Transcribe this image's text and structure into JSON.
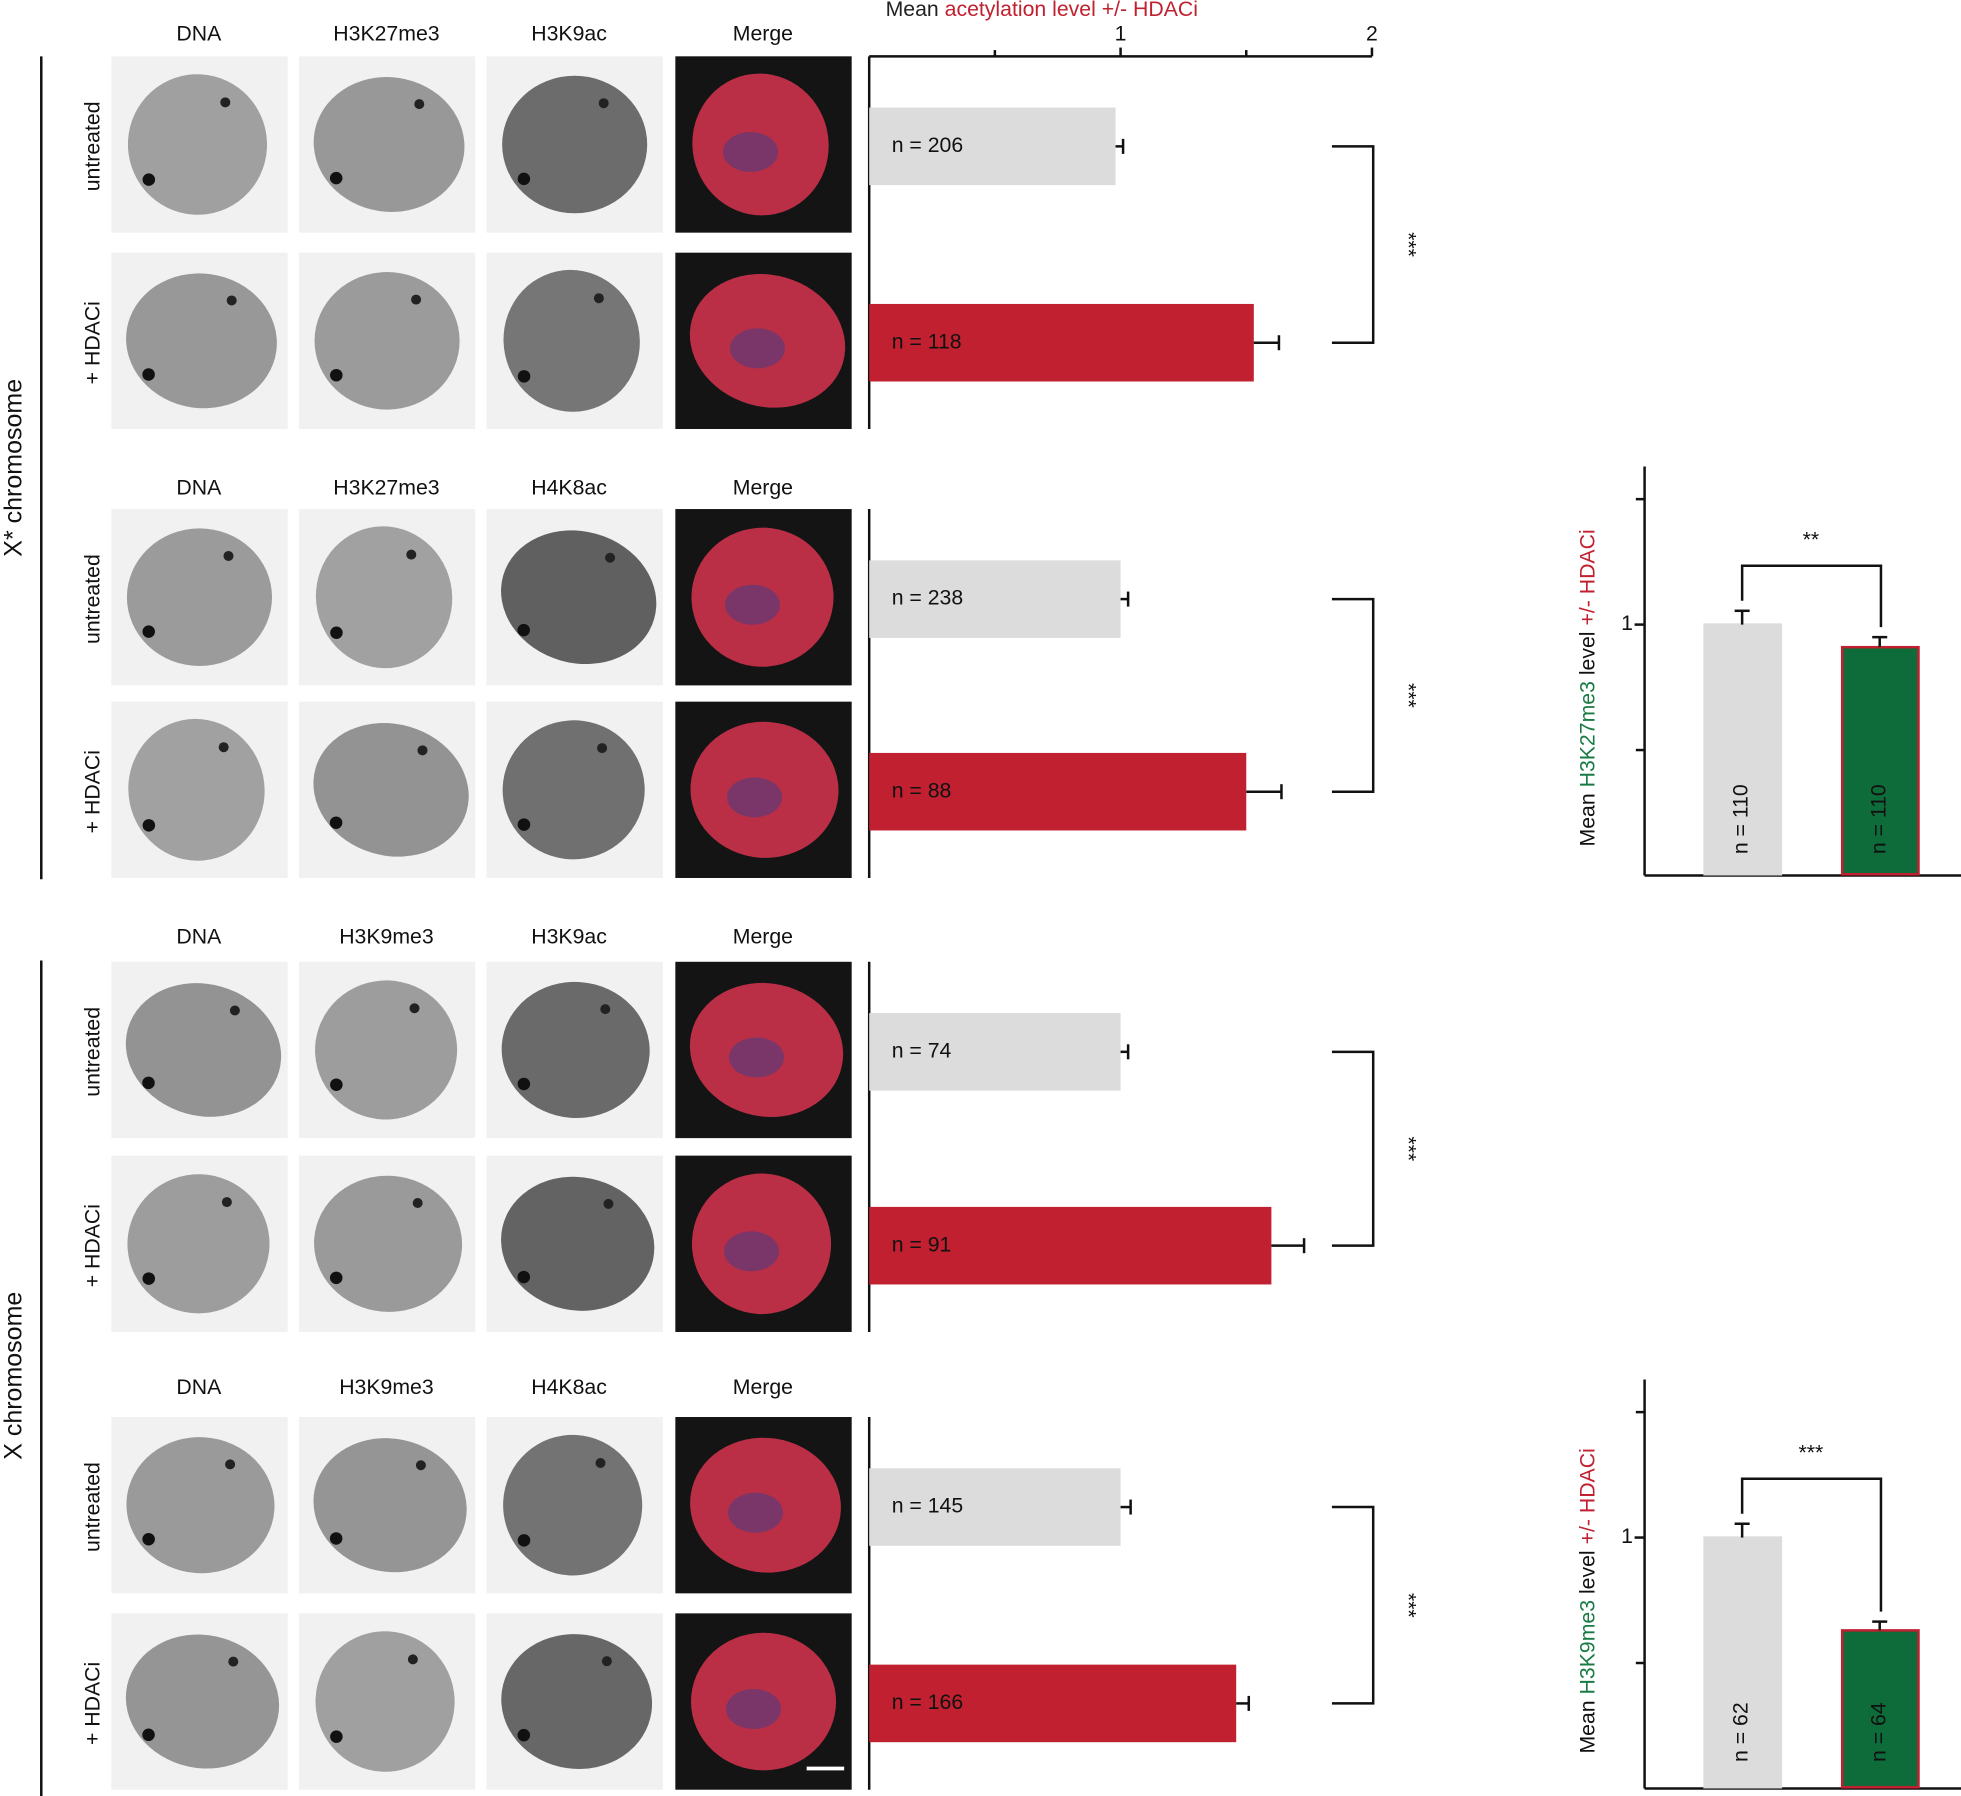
{
  "figure": {
    "sections": [
      {
        "label": "X* chromosome"
      },
      {
        "label": "X chromosome"
      }
    ],
    "panels": [
      {
        "headers": [
          "DNA",
          "H3K27me3",
          "H3K9ac",
          "Merge"
        ]
      },
      {
        "headers": [
          "DNA",
          "H3K27me3",
          "H4K8ac",
          "Merge"
        ]
      },
      {
        "headers": [
          "DNA",
          "H3K9me3",
          "H3K9ac",
          "Merge"
        ]
      },
      {
        "headers": [
          "DNA",
          "H3K9me3",
          "H4K8ac",
          "Merge"
        ]
      }
    ],
    "header_colors": [
      "#2ab0c8",
      "#1a7a45",
      "#c0202f",
      "#111111"
    ]
  },
  "chart_data": [
    {
      "type": "bar",
      "orientation": "horizontal",
      "xlabel_parts": [
        {
          "text": "Mean",
          "color": "#222222"
        },
        {
          "text": "acetylation level +/- HDACi",
          "color": "#c0202f"
        }
      ],
      "xlim": [
        0,
        2
      ],
      "xticks": [
        1,
        2
      ],
      "minor_xticks": [
        0.5,
        1.5
      ],
      "categories": [
        "untreated",
        "+ HDACi"
      ],
      "category_colors": [
        "#111111",
        "#c0202f"
      ],
      "values": [
        0.98,
        1.53
      ],
      "errors": [
        0.03,
        0.1
      ],
      "colors": [
        "#dcdcdc",
        "#c0202f"
      ],
      "n_labels": [
        "n = 206",
        "n = 118"
      ],
      "significance": "***"
    },
    {
      "type": "bar",
      "orientation": "horizontal",
      "xlim": [
        0,
        2
      ],
      "categories": [
        "untreated",
        "+ HDACi"
      ],
      "category_colors": [
        "#111111",
        "#c0202f"
      ],
      "values": [
        1.0,
        1.5
      ],
      "errors": [
        0.03,
        0.14
      ],
      "colors": [
        "#dcdcdc",
        "#c0202f"
      ],
      "n_labels": [
        "n = 238",
        "n = 88"
      ],
      "significance": "***"
    },
    {
      "type": "bar",
      "orientation": "horizontal",
      "xlim": [
        0,
        2
      ],
      "categories": [
        "untreated",
        "+ HDACi"
      ],
      "category_colors": [
        "#111111",
        "#c0202f"
      ],
      "values": [
        1.0,
        1.6
      ],
      "errors": [
        0.03,
        0.13
      ],
      "colors": [
        "#dcdcdc",
        "#c0202f"
      ],
      "n_labels": [
        "n = 74",
        "n = 91"
      ],
      "significance": "***"
    },
    {
      "type": "bar",
      "orientation": "horizontal",
      "xlim": [
        0,
        2
      ],
      "categories": [
        "untreated",
        "+ HDACi"
      ],
      "category_colors": [
        "#111111",
        "#c0202f"
      ],
      "values": [
        1.0,
        1.46
      ],
      "errors": [
        0.04,
        0.05
      ],
      "colors": [
        "#dcdcdc",
        "#c0202f"
      ],
      "n_labels": [
        "n = 145",
        "n = 166"
      ],
      "significance": "***"
    },
    {
      "type": "bar",
      "orientation": "vertical",
      "ylabel_parts": [
        {
          "text": "Mean",
          "color": "#111111"
        },
        {
          "text": "H3K27me3",
          "color": "#1a7a45"
        },
        {
          "text": "level",
          "color": "#111111"
        },
        {
          "text": "+/- HDACi",
          "color": "#c0202f"
        }
      ],
      "ylim": [
        0,
        1.63
      ],
      "yticks": [
        1
      ],
      "minor_yticks": [
        0.5,
        1.5
      ],
      "values": [
        1.0,
        0.91
      ],
      "errors": [
        0.055,
        0.04
      ],
      "colors": [
        "#dcdcdc",
        "#0e6b3a"
      ],
      "edge_colors": [
        "#dcdcdc",
        "#c0202f"
      ],
      "n_labels": [
        "n = 110",
        "n = 110"
      ],
      "significance": "**"
    },
    {
      "type": "bar",
      "orientation": "vertical",
      "ylabel_parts": [
        {
          "text": "Mean",
          "color": "#111111"
        },
        {
          "text": "H3K9me3",
          "color": "#1a7a45"
        },
        {
          "text": "level",
          "color": "#111111"
        },
        {
          "text": "+/- HDACi",
          "color": "#c0202f"
        }
      ],
      "ylim": [
        0,
        1.63
      ],
      "yticks": [
        1
      ],
      "minor_yticks": [
        0.5,
        1.5
      ],
      "values": [
        1.0,
        0.63
      ],
      "errors": [
        0.055,
        0.035
      ],
      "colors": [
        "#dcdcdc",
        "#0e6b3a"
      ],
      "edge_colors": [
        "#dcdcdc",
        "#c0202f"
      ],
      "n_labels": [
        "n = 62",
        "n = 64"
      ],
      "significance": "***"
    }
  ]
}
